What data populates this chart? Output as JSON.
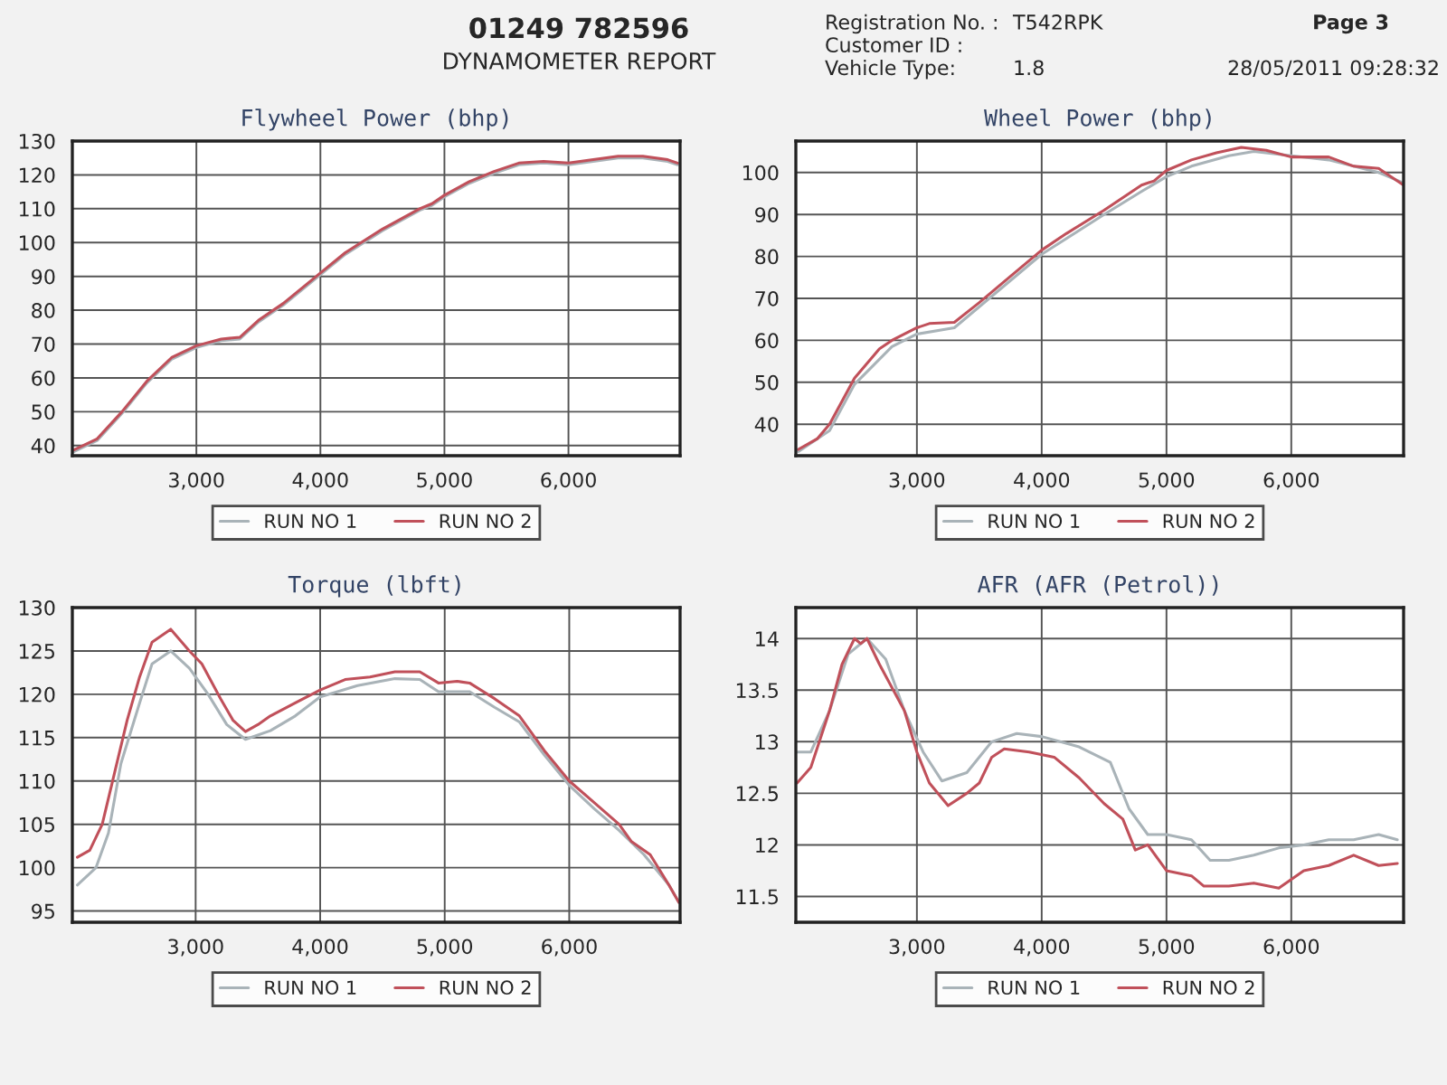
{
  "chart_data": [
    {
      "type": "line",
      "title": "Flywheel Power (bhp)",
      "annotations": [
        "01249 782596",
        "DYNAMOMETER REPORT",
        "Registration No. :",
        "T542RPK",
        "Customer ID :",
        "Vehicle Type:",
        "1.8",
        "Page 3",
        "28/05/2011 09:28:32"
      ],
      "xlim": [
        2000,
        6900
      ],
      "xticks": [
        {
          "value": 3000,
          "label": "3,000"
        },
        {
          "value": 4000,
          "label": "4,000"
        },
        {
          "value": 5000,
          "label": "5,000"
        },
        {
          "value": 6000,
          "label": "6,000"
        }
      ],
      "ylim": [
        37,
        130
      ],
      "yticks": [
        40,
        50,
        60,
        70,
        80,
        90,
        100,
        110,
        120,
        130
      ],
      "grid": true,
      "legend": "bottom",
      "series": [
        {
          "name": "RUN NO 1",
          "color": "#a9b3b8",
          "x": [
            2000,
            2200,
            2400,
            2600,
            2800,
            3000,
            3200,
            3350,
            3500,
            3700,
            4000,
            4200,
            4500,
            4800,
            4900,
            5000,
            5200,
            5400,
            5600,
            5800,
            6000,
            6200,
            6400,
            6600,
            6800,
            6880
          ],
          "values": [
            38,
            41.5,
            49.5,
            58.5,
            65.5,
            69,
            71,
            71.5,
            76.5,
            81.5,
            90.5,
            96.5,
            103.5,
            109.5,
            111,
            113.5,
            117.5,
            120.5,
            123,
            123.5,
            123,
            124,
            125,
            125,
            124,
            123
          ]
        },
        {
          "name": "RUN NO 2",
          "color": "#c0505a",
          "x": [
            2000,
            2200,
            2400,
            2600,
            2800,
            3000,
            3200,
            3350,
            3500,
            3700,
            4000,
            4200,
            4500,
            4800,
            4900,
            5000,
            5200,
            5400,
            5600,
            5800,
            6000,
            6200,
            6400,
            6600,
            6800,
            6880
          ],
          "values": [
            38.5,
            42,
            50,
            59,
            66,
            69.5,
            71.5,
            72,
            77,
            82,
            91,
            97,
            104,
            110,
            111.5,
            114,
            118,
            121,
            123.5,
            124,
            123.5,
            124.5,
            125.5,
            125.5,
            124.5,
            123.5
          ]
        }
      ]
    },
    {
      "type": "line",
      "title": "Wheel Power (bhp)",
      "xlim": [
        2030,
        6900
      ],
      "xticks": [
        {
          "value": 3000,
          "label": "3,000"
        },
        {
          "value": 4000,
          "label": "4,000"
        },
        {
          "value": 5000,
          "label": "5,000"
        },
        {
          "value": 6000,
          "label": "6,000"
        }
      ],
      "ylim": [
        32.5,
        107.5
      ],
      "yticks": [
        40,
        50,
        60,
        70,
        80,
        90,
        100
      ],
      "grid": true,
      "legend": "bottom",
      "series": [
        {
          "name": "RUN NO 1",
          "color": "#a9b3b8",
          "x": [
            2050,
            2300,
            2500,
            2800,
            3000,
            3300,
            3500,
            4000,
            4500,
            4800,
            5000,
            5200,
            5500,
            5700,
            6000,
            6300,
            6500,
            6700,
            6900
          ],
          "values": [
            33.5,
            38.5,
            49.5,
            58.5,
            61.5,
            63,
            68,
            80.5,
            90,
            95.5,
            99,
            101.5,
            104,
            105,
            104,
            103,
            101.5,
            100,
            97.5
          ]
        },
        {
          "name": "RUN NO 2",
          "color": "#c0505a",
          "x": [
            2050,
            2200,
            2300,
            2500,
            2700,
            2800,
            3000,
            3100,
            3300,
            3500,
            3700,
            4000,
            4200,
            4500,
            4800,
            4900,
            5000,
            5200,
            5400,
            5600,
            5800,
            6000,
            6300,
            6500,
            6700,
            6900
          ],
          "values": [
            34,
            36.5,
            40,
            51,
            58,
            60,
            63,
            64,
            64.3,
            69,
            74,
            81.5,
            85.5,
            91,
            97,
            98,
            100.5,
            103,
            104.7,
            106,
            105.3,
            103.7,
            103.7,
            101.5,
            101,
            97
          ]
        }
      ]
    },
    {
      "type": "line",
      "title": "Torque (lbft)",
      "xlim": [
        2010,
        6890
      ],
      "xticks": [
        {
          "value": 3000,
          "label": "3,000"
        },
        {
          "value": 4000,
          "label": "4,000"
        },
        {
          "value": 5000,
          "label": "5,000"
        },
        {
          "value": 6000,
          "label": "6,000"
        }
      ],
      "ylim": [
        93.7,
        130
      ],
      "yticks": [
        95,
        100,
        105,
        110,
        115,
        120,
        125,
        130
      ],
      "grid": true,
      "legend": "bottom",
      "series": [
        {
          "name": "RUN NO 1",
          "color": "#a9b3b8",
          "x": [
            2050,
            2200,
            2300,
            2400,
            2550,
            2650,
            2800,
            2950,
            3100,
            3250,
            3400,
            3600,
            3800,
            4000,
            4300,
            4600,
            4800,
            4950,
            5200,
            5400,
            5600,
            5800,
            6000,
            6200,
            6400,
            6600,
            6800,
            6880
          ],
          "values": [
            98,
            100,
            104,
            112,
            119,
            123.5,
            125,
            123,
            120,
            116.5,
            114.8,
            115.8,
            117.5,
            119.7,
            121,
            121.8,
            121.7,
            120.3,
            120.3,
            118.5,
            116.8,
            113,
            109.5,
            106.8,
            104.3,
            101.5,
            98,
            96
          ]
        },
        {
          "name": "RUN NO 2",
          "color": "#c0505a",
          "x": [
            2050,
            2150,
            2250,
            2350,
            2450,
            2550,
            2650,
            2800,
            2950,
            3050,
            3200,
            3300,
            3400,
            3500,
            3600,
            3800,
            4000,
            4200,
            4400,
            4600,
            4800,
            4950,
            5100,
            5200,
            5400,
            5600,
            5800,
            6000,
            6200,
            6400,
            6500,
            6650,
            6800,
            6880
          ],
          "values": [
            101.2,
            102,
            105,
            111,
            117,
            122,
            126,
            127.5,
            125,
            123.5,
            119.5,
            117,
            115.7,
            116.5,
            117.5,
            119,
            120.5,
            121.7,
            122,
            122.6,
            122.6,
            121.3,
            121.5,
            121.3,
            119.5,
            117.5,
            113.5,
            110,
            107.5,
            105,
            103,
            101.5,
            98,
            96
          ]
        }
      ]
    },
    {
      "type": "line",
      "title": "AFR (AFR (Petrol))",
      "xlim": [
        2030,
        6900
      ],
      "xticks": [
        {
          "value": 3000,
          "label": "3,000"
        },
        {
          "value": 4000,
          "label": "4,000"
        },
        {
          "value": 5000,
          "label": "5,000"
        },
        {
          "value": 6000,
          "label": "6,000"
        }
      ],
      "ylim": [
        11.25,
        14.3
      ],
      "yticks": [
        11.5,
        12,
        12.5,
        13,
        13.5,
        14
      ],
      "grid": true,
      "legend": "bottom",
      "series": [
        {
          "name": "RUN NO 1",
          "color": "#a9b3b8",
          "x": [
            2040,
            2150,
            2300,
            2450,
            2600,
            2750,
            2900,
            3050,
            3200,
            3400,
            3600,
            3800,
            4000,
            4300,
            4550,
            4700,
            4850,
            5000,
            5200,
            5350,
            5500,
            5700,
            5900,
            6100,
            6300,
            6500,
            6700,
            6850
          ],
          "values": [
            12.9,
            12.9,
            13.3,
            13.85,
            14.0,
            13.8,
            13.3,
            12.9,
            12.62,
            12.7,
            13.0,
            13.08,
            13.05,
            12.95,
            12.8,
            12.35,
            12.1,
            12.1,
            12.05,
            11.85,
            11.85,
            11.9,
            11.97,
            12.0,
            12.05,
            12.05,
            12.1,
            12.05
          ]
        },
        {
          "name": "RUN NO 2",
          "color": "#c0505a",
          "x": [
            2040,
            2150,
            2300,
            2400,
            2500,
            2550,
            2600,
            2700,
            2900,
            3000,
            3100,
            3250,
            3400,
            3500,
            3600,
            3700,
            3900,
            4100,
            4300,
            4500,
            4650,
            4750,
            4850,
            5000,
            5200,
            5300,
            5500,
            5700,
            5900,
            6100,
            6300,
            6500,
            6700,
            6850
          ],
          "values": [
            12.6,
            12.75,
            13.3,
            13.75,
            14.0,
            13.95,
            14.0,
            13.75,
            13.3,
            12.9,
            12.6,
            12.38,
            12.5,
            12.6,
            12.85,
            12.93,
            12.9,
            12.85,
            12.65,
            12.4,
            12.25,
            11.95,
            12.0,
            11.75,
            11.7,
            11.6,
            11.6,
            11.63,
            11.58,
            11.75,
            11.8,
            11.9,
            11.8,
            11.82
          ]
        }
      ]
    }
  ]
}
